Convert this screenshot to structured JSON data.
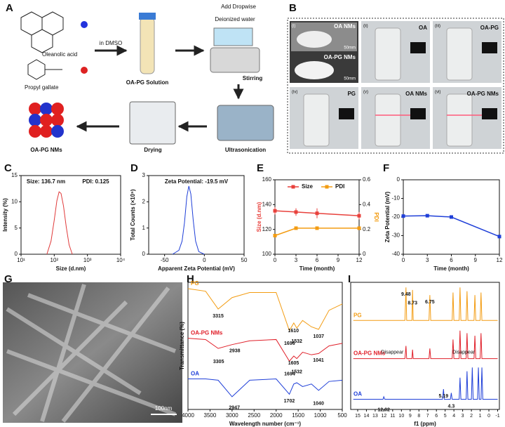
{
  "panel_labels": [
    "A",
    "B",
    "C",
    "D",
    "E",
    "F",
    "G",
    "H",
    "I"
  ],
  "scheme": {
    "oleanolic_acid": "Oleanolic acid",
    "propyl_gallate": "Propyl gallate",
    "solvent": "in DMSO",
    "solution": "OA-PG Solution",
    "add": "Add Dropwise",
    "water": "Deionized water",
    "stirring": "Stirring",
    "ultrasonication": "Ultrasonication",
    "drying": "Drying",
    "product": "OA-PG NMs"
  },
  "photos": {
    "cells": [
      {
        "index": "(i)",
        "labels": [
          "OA NMs",
          "50mm",
          "OA-PG NMs",
          "50mm"
        ]
      },
      {
        "index": "(ii)",
        "labels": [
          "OA"
        ]
      },
      {
        "index": "(iii)",
        "labels": [
          "OA-PG"
        ]
      },
      {
        "index": "(iv)",
        "labels": [
          "PG"
        ]
      },
      {
        "index": "(v)",
        "labels": [
          "OA NMs"
        ]
      },
      {
        "index": "(vi)",
        "labels": [
          "OA-PG NMs"
        ]
      }
    ]
  },
  "sem": {
    "scale_bar": "100nm"
  },
  "chart_data": [
    {
      "type": "line",
      "xlabel": "Size (d.nm)",
      "ylabel": "Intensity (%)",
      "xlog": true,
      "annotations": [
        "Size: 136.7 nm",
        "PDI: 0.125"
      ],
      "x": [
        60,
        80,
        100,
        120,
        140,
        160,
        190,
        230,
        280,
        350
      ],
      "series": [
        {
          "color": "#e03a3a",
          "values": [
            0,
            2.5,
            6.5,
            10.2,
            11.9,
            11.6,
            9.2,
            5.2,
            1.8,
            0
          ]
        }
      ],
      "xlim": [
        10,
        10000
      ],
      "xticks": [
        {
          "value": 10,
          "label": "10¹"
        },
        {
          "value": 100,
          "label": "10²"
        },
        {
          "value": 1000,
          "label": "10³"
        },
        {
          "value": 10000,
          "label": "10⁴"
        }
      ],
      "ylim": [
        0,
        15
      ],
      "yticks": [
        0,
        5,
        10,
        15
      ]
    },
    {
      "type": "line",
      "xlabel": "Apparent Zeta Potential (mV)",
      "ylabel": "Total Counts (×10⁵)",
      "annotations": [
        "Zeta Potential: -19.5 mV"
      ],
      "x": [
        -40,
        -32,
        -28,
        -25,
        -22,
        -19.5,
        -17,
        -14,
        -11,
        -7,
        0
      ],
      "series": [
        {
          "color": "#1f3fd8",
          "values": [
            0,
            0.15,
            0.5,
            1.2,
            2.2,
            2.6,
            2.3,
            1.3,
            0.5,
            0.1,
            0
          ]
        }
      ],
      "xlim": [
        -70,
        50
      ],
      "xticks": [
        -50,
        0,
        50
      ],
      "ylim": [
        0,
        3
      ],
      "yticks": [
        0,
        1,
        2,
        3
      ]
    },
    {
      "type": "line",
      "xlabel": "Time (month)",
      "ylabel": "Size (d.nm)",
      "y2label": "PDI",
      "legend": "top",
      "x": [
        0,
        3,
        6,
        12
      ],
      "series": [
        {
          "name": "Size",
          "color": "#e8413c",
          "marker": true,
          "values": [
            135,
            134,
            133,
            131
          ],
          "errors": [
            3,
            3,
            4,
            3
          ]
        },
        {
          "name": "PDI",
          "color": "#f39c12",
          "marker": true,
          "axis": "y2",
          "values": [
            0.15,
            0.21,
            0.21,
            0.21
          ],
          "errors": [
            0.01,
            0.01,
            0.01,
            0.01
          ]
        }
      ],
      "xlim": [
        0,
        12
      ],
      "xticks": [
        0,
        3,
        6,
        9,
        12
      ],
      "ylim": [
        100,
        160
      ],
      "yticks": [
        100,
        120,
        140,
        160
      ],
      "y2lim": [
        0,
        0.6
      ],
      "y2ticks": [
        0,
        0.2,
        0.4,
        0.6
      ]
    },
    {
      "type": "line",
      "xlabel": "Time (month)",
      "ylabel": "Zeta Potential (mV)",
      "x": [
        0,
        3,
        6,
        12
      ],
      "series": [
        {
          "color": "#1f3fd8",
          "marker": true,
          "values": [
            -19.5,
            -19.3,
            -20,
            -30.5
          ],
          "errors": [
            0.6,
            0.5,
            0.6,
            0.5
          ]
        }
      ],
      "xlim": [
        0,
        12
      ],
      "xticks": [
        0,
        3,
        6,
        9,
        12
      ],
      "ylim": [
        -40,
        0
      ],
      "yticks": [
        -40,
        -30,
        -20,
        -10,
        0
      ]
    },
    {
      "type": "line",
      "xlabel": "Wavelength number (cm⁻¹)",
      "ylabel": "Transmittance (%)",
      "series_labels": true,
      "x": [
        4000,
        3600,
        3315,
        3000,
        2600,
        2000,
        1700,
        1600,
        1532,
        1400,
        1200,
        1037,
        800,
        500
      ],
      "series": [
        {
          "name": "PG",
          "color": "#f39c12",
          "values": [
            9.5,
            9.3,
            7.9,
            8.8,
            9.2,
            9.2,
            6.2,
            6.8,
            6.4,
            7.0,
            6.5,
            6.3,
            7.8,
            8.3
          ]
        },
        {
          "name": "OA-PG NMs",
          "color": "#e0202a",
          "values": [
            5.6,
            5.5,
            4.8,
            5.1,
            5.4,
            5.5,
            3.8,
            4.2,
            4.0,
            4.5,
            4.3,
            4.4,
            5.0,
            5.2
          ]
        },
        {
          "name": "OA",
          "color": "#1f3fd8",
          "values": [
            2.4,
            2.4,
            2.3,
            1.0,
            2.3,
            2.4,
            1.2,
            2.0,
            2.1,
            1.8,
            2.0,
            1.5,
            2.2,
            2.3
          ]
        }
      ],
      "peak_labels": [
        {
          "series": 0,
          "x": 3315
        },
        {
          "series": 0,
          "x": 1696
        },
        {
          "series": 0,
          "x": 1610
        },
        {
          "series": 0,
          "x": 1532
        },
        {
          "series": 0,
          "x": 1037
        },
        {
          "series": 1,
          "x": 3305
        },
        {
          "series": 1,
          "x": 2938
        },
        {
          "series": 1,
          "x": 1694
        },
        {
          "series": 1,
          "x": 1605
        },
        {
          "series": 1,
          "x": 1532
        },
        {
          "series": 1,
          "x": 1041
        },
        {
          "series": 2,
          "x": 2947
        },
        {
          "series": 2,
          "x": 1702
        },
        {
          "series": 2,
          "x": 1040
        }
      ],
      "xlim": [
        4000,
        500
      ],
      "xticks": [
        4000,
        3500,
        3000,
        2500,
        2000,
        1500,
        1000,
        500
      ],
      "ylim": [
        0,
        10
      ]
    },
    {
      "type": "line",
      "xlabel": "f1 (ppm)",
      "series_labels": true,
      "series": [
        {
          "name": "PG",
          "color": "#f39c12",
          "x": [
            15.5,
            9.6,
            9.48,
            9.4,
            8.8,
            8.73,
            8.65,
            6.85,
            6.75,
            6.65,
            4.2,
            4.1,
            4.0,
            3.4,
            3.3,
            3.2,
            2.6,
            2.5,
            2.4,
            1.7,
            1.6,
            1.5,
            1.0,
            0.9,
            0.8,
            -1
          ],
          "values": [
            7,
            7,
            9.6,
            7,
            7,
            9.4,
            7,
            7,
            9.0,
            7,
            7,
            9.2,
            7,
            7,
            9.6,
            7,
            7,
            9.3,
            7,
            7,
            9.0,
            7,
            7,
            9.2,
            7,
            7
          ]
        },
        {
          "name": "OA-PG NMs",
          "color": "#e0202a",
          "x": [
            15.5,
            9.6,
            9.48,
            9.4,
            8.8,
            8.73,
            8.65,
            6.85,
            6.75,
            6.65,
            4.2,
            4.1,
            4.0,
            3.4,
            3.3,
            3.2,
            2.6,
            2.5,
            2.4,
            1.7,
            1.6,
            1.5,
            1.0,
            0.9,
            0.8,
            -1
          ],
          "values": [
            4,
            4,
            5.0,
            4,
            4,
            4.7,
            4,
            4,
            4.8,
            4,
            4,
            5.5,
            4,
            4,
            6.2,
            4,
            4,
            6.0,
            4,
            4,
            5.8,
            4,
            4,
            6.0,
            4,
            4
          ]
        },
        {
          "name": "OA",
          "color": "#1f3fd8",
          "x": [
            15.5,
            12.1,
            12.02,
            11.9,
            5.3,
            5.19,
            5.1,
            4.4,
            4.3,
            4.2,
            3.4,
            3.3,
            3.2,
            2.6,
            2.5,
            2.4,
            2.0,
            1.9,
            1.8,
            1.3,
            1.2,
            1.1,
            0.9,
            0.8,
            0.7,
            -1
          ],
          "values": [
            0.8,
            0.8,
            1.0,
            0.8,
            0.8,
            1.6,
            0.8,
            0.8,
            1.3,
            0.8,
            0.8,
            2.5,
            0.8,
            0.8,
            3.0,
            0.8,
            0.8,
            3.3,
            0.8,
            0.8,
            3.3,
            0.8,
            0.8,
            3.3,
            0.8,
            0.8
          ]
        }
      ],
      "peak_labels": [
        {
          "series": 0,
          "x": 9.48
        },
        {
          "series": 0,
          "x": 8.73
        },
        {
          "series": 0,
          "x": 6.75
        },
        {
          "series": 2,
          "x": 12.02
        },
        {
          "series": 2,
          "x": 5.19
        },
        {
          "series": 2,
          "x": 4.3
        }
      ],
      "notes": [
        "Disappear",
        "Disappear"
      ],
      "xlim": [
        15.8,
        -1.2
      ],
      "xticks": [
        15,
        14,
        13,
        12,
        11,
        10,
        9,
        8,
        7,
        6,
        5,
        4,
        3,
        2,
        1,
        0,
        -1
      ],
      "ylim": [
        0,
        10
      ]
    }
  ]
}
